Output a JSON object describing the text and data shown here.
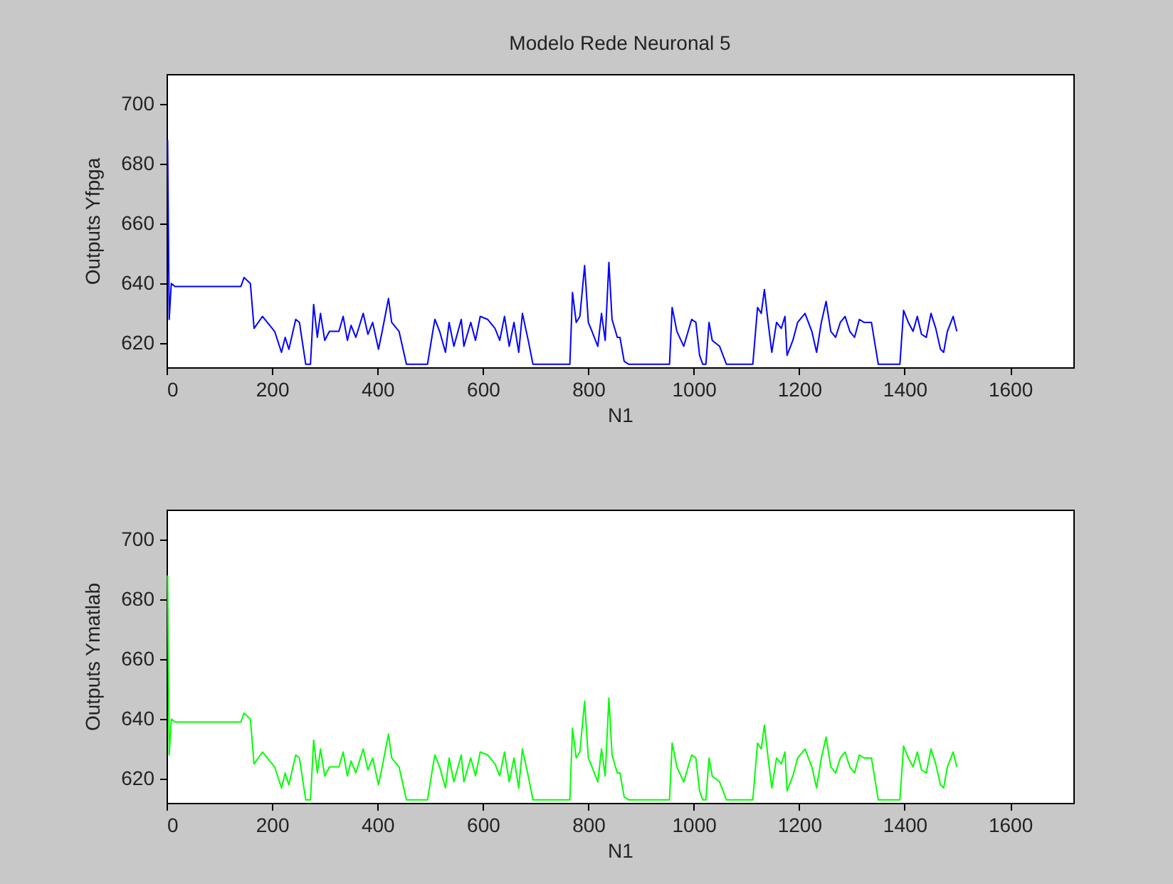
{
  "chart_data": [
    {
      "type": "line",
      "title": "Modelo Rede Neuronal 5",
      "xlabel": "N1",
      "ylabel": "Outputs Yfpga",
      "xlim": [
        0,
        1720
      ],
      "ylim": [
        612,
        710
      ],
      "xticks": [
        0,
        200,
        400,
        600,
        800,
        1000,
        1200,
        1400,
        1600
      ],
      "yticks": [
        620,
        640,
        660,
        680,
        700
      ],
      "x": [
        2,
        5,
        9,
        16,
        141,
        147,
        159,
        166,
        182,
        205,
        218,
        225,
        232,
        245,
        252,
        264,
        273,
        279,
        286,
        292,
        300,
        309,
        327,
        335,
        343,
        350,
        359,
        373,
        382,
        391,
        402,
        409,
        421,
        427,
        441,
        455,
        495,
        505,
        509,
        518,
        529,
        536,
        545,
        559,
        564,
        577,
        586,
        595,
        609,
        623,
        632,
        641,
        650,
        659,
        668,
        675,
        686,
        695,
        709,
        765,
        770,
        777,
        784,
        793,
        800,
        807,
        818,
        825,
        832,
        839,
        845,
        855,
        860,
        868,
        877,
        954,
        959,
        968,
        981,
        996,
        1004,
        1011,
        1017,
        1023,
        1029,
        1035,
        1049,
        1062,
        1112,
        1121,
        1128,
        1134,
        1141,
        1148,
        1157,
        1166,
        1173,
        1177,
        1188,
        1197,
        1211,
        1224,
        1233,
        1242,
        1251,
        1260,
        1269,
        1278,
        1287,
        1296,
        1305,
        1314,
        1323,
        1337,
        1350,
        1391,
        1398,
        1407,
        1416,
        1424,
        1432,
        1441,
        1450,
        1459,
        1468,
        1474,
        1481,
        1492,
        1499
      ],
      "series": [
        {
          "color": "#0000ff",
          "values": [
            688,
            628,
            640,
            639,
            639,
            642,
            640,
            625,
            629,
            624,
            617,
            622,
            618,
            628,
            627,
            613,
            613,
            633,
            622,
            630,
            621,
            624,
            624,
            629,
            621,
            626,
            622,
            630,
            623,
            627,
            618,
            624,
            635,
            627,
            624,
            613,
            613,
            624,
            628,
            624,
            617,
            627,
            619,
            628,
            619,
            627,
            621,
            629,
            628,
            625,
            621,
            629,
            619,
            627,
            617,
            630,
            621,
            613,
            613,
            613,
            637,
            627,
            629,
            646,
            627,
            624,
            619,
            630,
            621,
            647,
            628,
            622,
            622,
            614,
            613,
            613,
            632,
            624,
            619,
            628,
            627,
            616,
            613,
            613,
            627,
            621,
            619,
            613,
            613,
            632,
            630,
            638,
            627,
            617,
            627,
            625,
            629,
            616,
            621,
            627,
            630,
            624,
            617,
            627,
            634,
            624,
            622,
            627,
            629,
            624,
            622,
            628,
            627,
            627,
            613,
            613,
            631,
            627,
            624,
            629,
            623,
            622,
            630,
            625,
            618,
            617,
            624,
            629,
            624
          ]
        }
      ]
    },
    {
      "type": "line",
      "xlabel": "N1",
      "ylabel": "Outputs Ymatlab",
      "xlim": [
        0,
        1720
      ],
      "ylim": [
        612,
        710
      ],
      "xticks": [
        0,
        200,
        400,
        600,
        800,
        1000,
        1200,
        1400,
        1600
      ],
      "yticks": [
        620,
        640,
        660,
        680,
        700
      ],
      "x": [
        2,
        5,
        9,
        16,
        141,
        147,
        159,
        166,
        182,
        205,
        218,
        225,
        232,
        245,
        252,
        264,
        273,
        279,
        286,
        292,
        300,
        309,
        327,
        335,
        343,
        350,
        359,
        373,
        382,
        391,
        402,
        409,
        421,
        427,
        441,
        455,
        495,
        505,
        509,
        518,
        529,
        536,
        545,
        559,
        564,
        577,
        586,
        595,
        609,
        623,
        632,
        641,
        650,
        659,
        668,
        675,
        686,
        695,
        709,
        765,
        770,
        777,
        784,
        793,
        800,
        807,
        818,
        825,
        832,
        839,
        845,
        855,
        860,
        868,
        877,
        954,
        959,
        968,
        981,
        996,
        1004,
        1011,
        1017,
        1023,
        1029,
        1035,
        1049,
        1062,
        1112,
        1121,
        1128,
        1134,
        1141,
        1148,
        1157,
        1166,
        1173,
        1177,
        1188,
        1197,
        1211,
        1224,
        1233,
        1242,
        1251,
        1260,
        1269,
        1278,
        1287,
        1296,
        1305,
        1314,
        1323,
        1337,
        1350,
        1391,
        1398,
        1407,
        1416,
        1424,
        1432,
        1441,
        1450,
        1459,
        1468,
        1474,
        1481,
        1492,
        1499
      ],
      "series": [
        {
          "color": "#00ff00",
          "values": [
            688,
            628,
            640,
            639,
            639,
            642,
            640,
            625,
            629,
            624,
            617,
            622,
            618,
            628,
            627,
            613,
            613,
            633,
            622,
            630,
            621,
            624,
            624,
            629,
            621,
            626,
            622,
            630,
            623,
            627,
            618,
            624,
            635,
            627,
            624,
            613,
            613,
            624,
            628,
            624,
            617,
            627,
            619,
            628,
            619,
            627,
            621,
            629,
            628,
            625,
            621,
            629,
            619,
            627,
            617,
            630,
            621,
            613,
            613,
            613,
            637,
            627,
            629,
            646,
            627,
            624,
            619,
            630,
            621,
            647,
            628,
            622,
            622,
            614,
            613,
            613,
            632,
            624,
            619,
            628,
            627,
            616,
            613,
            613,
            627,
            621,
            619,
            613,
            613,
            632,
            630,
            638,
            627,
            617,
            627,
            625,
            629,
            616,
            621,
            627,
            630,
            624,
            617,
            627,
            634,
            624,
            622,
            627,
            629,
            624,
            622,
            628,
            627,
            627,
            613,
            613,
            631,
            627,
            624,
            629,
            623,
            622,
            630,
            625,
            618,
            617,
            624,
            629,
            624
          ]
        }
      ]
    }
  ]
}
